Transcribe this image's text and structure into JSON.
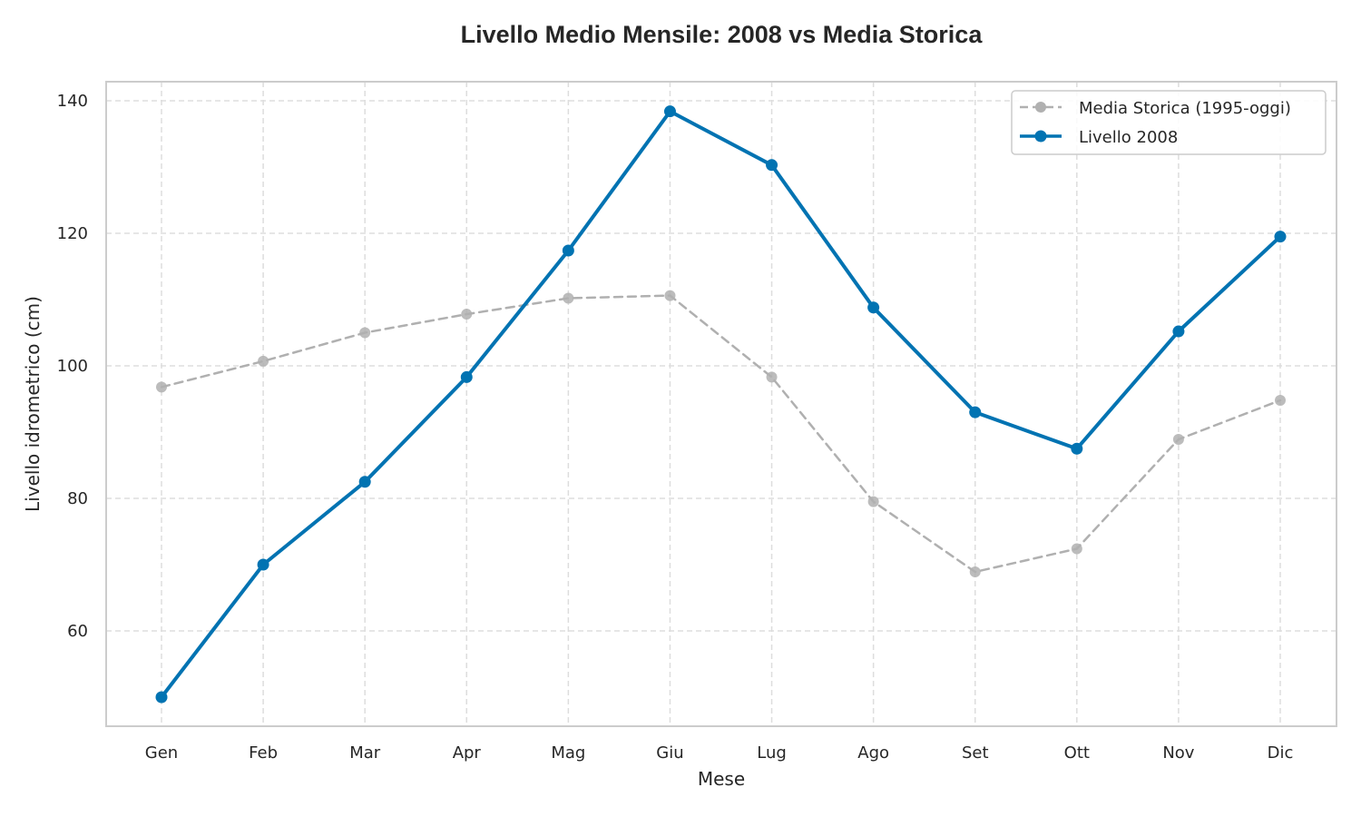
{
  "chart_data": {
    "type": "line",
    "title": "Livello Medio Mensile: 2008 vs Media Storica",
    "xlabel": "Mese",
    "ylabel": "Livello idrometrico (cm)",
    "categories": [
      "Gen",
      "Feb",
      "Mar",
      "Apr",
      "Mag",
      "Giu",
      "Lug",
      "Ago",
      "Set",
      "Ott",
      "Nov",
      "Dic"
    ],
    "yticks": [
      60,
      80,
      100,
      120,
      140
    ],
    "ylim": [
      45,
      143
    ],
    "grid": true,
    "legend_position": "top-right",
    "series": [
      {
        "name": "Media Storica (1995-oggi)",
        "style": "dashed",
        "color": "#b0b0b0",
        "values": [
          96.8,
          100.7,
          105.0,
          107.8,
          110.2,
          110.6,
          98.3,
          79.5,
          68.9,
          72.4,
          88.9,
          94.8
        ]
      },
      {
        "name": "Livello 2008",
        "style": "solid",
        "color": "#0173b2",
        "values": [
          50.0,
          70.0,
          82.5,
          98.3,
          117.4,
          138.4,
          130.3,
          108.8,
          93.0,
          87.5,
          105.2,
          119.5
        ]
      }
    ]
  }
}
